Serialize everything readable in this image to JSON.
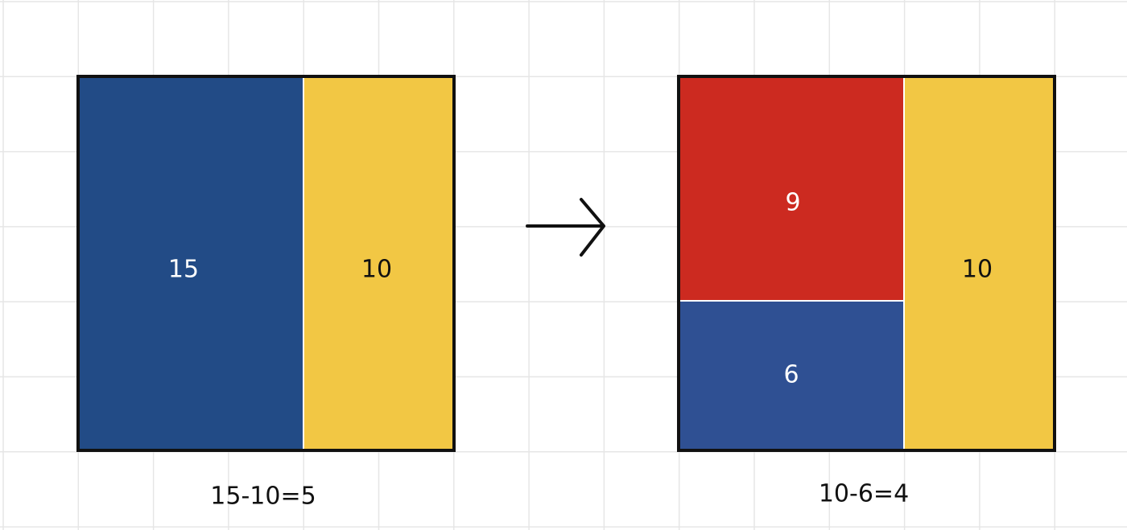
{
  "left": {
    "blocks": [
      {
        "label": "15"
      },
      {
        "label": "10"
      }
    ],
    "caption": "15-10=5"
  },
  "right": {
    "blocks": [
      {
        "label": "9"
      },
      {
        "label": "6"
      },
      {
        "label": "10"
      }
    ],
    "caption": "10-6=4"
  }
}
